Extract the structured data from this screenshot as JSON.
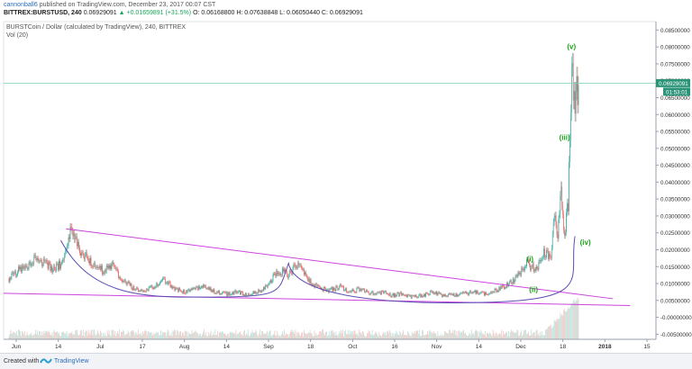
{
  "header": {
    "author": "cannonball6",
    "published_text": "published on TradingView.com, December 23, 2017 00:07 CST",
    "symbol_line": "BITTREX:BURSTUSD, 240",
    "last_price": "0.06929091",
    "change": "▲ +0.01659891 (+31.5%)",
    "ohlc": "O: 0.06168800  H: 0.07638848  L: 0.06050440  C: 0.06929091"
  },
  "chart_title": "BURSTCoin / Dollar (calculated by TradingView), 240, BITTREX",
  "volume_label": "Vol (20)",
  "footer": {
    "created_with": "Created with",
    "brand": "TradingView"
  },
  "colors": {
    "candle_up": "#26a69a",
    "candle_down": "#ef5350",
    "trendline": "#cc44dd",
    "curve": "#5c4db1",
    "wave_labels": "#1aa31a",
    "price_line": "#7ccfb6",
    "price_box": "#2b9478"
  },
  "chart_data": {
    "type": "line",
    "x_ticks": [
      "Jun",
      "14",
      "Jul",
      "17",
      "Aug",
      "14",
      "Sep",
      "18",
      "Oct",
      "16",
      "Nov",
      "14",
      "Dec",
      "18",
      "2018",
      "15"
    ],
    "y_ticks": [
      "0.08500000",
      "0.08000000",
      "0.07500000",
      "0.07000000",
      "0.06500000",
      "0.06000000",
      "0.05500000",
      "0.05000000",
      "0.04500000",
      "0.04000000",
      "0.03500000",
      "0.03000000",
      "0.02500000",
      "0.02000000",
      "0.01500000",
      "0.01000000",
      "0.00500000",
      "-0.00000000",
      "-0.00500000"
    ],
    "ylim": [
      -0.0065,
      0.0875
    ],
    "price_label": "0.06929091",
    "countdown_label": "01:53:01",
    "wave_labels": [
      {
        "text": "(i)",
        "x": 151,
        "y": 0.0166
      },
      {
        "text": "(ii)",
        "x": 152,
        "y": 0.0075
      },
      {
        "text": "(iii)",
        "x": 161,
        "y": 0.0525
      },
      {
        "text": "(iv)",
        "x": 167,
        "y": 0.0215
      },
      {
        "text": "(v)",
        "x": 163,
        "y": 0.0794
      }
    ],
    "x": [
      0,
      3,
      6,
      8,
      10,
      13,
      16,
      18,
      21,
      24,
      27,
      30,
      33,
      36,
      39,
      42,
      45,
      48,
      51,
      54,
      57,
      60,
      63,
      66,
      69,
      72,
      75,
      78,
      81,
      84,
      87,
      90,
      93,
      96,
      99,
      102,
      105,
      108,
      111,
      114,
      117,
      120,
      123,
      126,
      129,
      132,
      135,
      138,
      141,
      144,
      147,
      150,
      153,
      155,
      157,
      158,
      159,
      160,
      161,
      162,
      163,
      164,
      165
    ],
    "close": [
      0.0115,
      0.014,
      0.016,
      0.0175,
      0.016,
      0.014,
      0.017,
      0.026,
      0.019,
      0.016,
      0.014,
      0.015,
      0.011,
      0.0085,
      0.0075,
      0.009,
      0.011,
      0.0085,
      0.0075,
      0.0085,
      0.009,
      0.0075,
      0.007,
      0.0075,
      0.0065,
      0.0075,
      0.0095,
      0.014,
      0.0125,
      0.0165,
      0.0105,
      0.0085,
      0.008,
      0.009,
      0.0075,
      0.0085,
      0.007,
      0.0075,
      0.0065,
      0.007,
      0.006,
      0.0065,
      0.0075,
      0.0065,
      0.0065,
      0.007,
      0.0075,
      0.007,
      0.008,
      0.0095,
      0.0115,
      0.016,
      0.014,
      0.019,
      0.0175,
      0.031,
      0.024,
      0.036,
      0.024,
      0.034,
      0.074,
      0.064,
      0.0693
    ]
  }
}
